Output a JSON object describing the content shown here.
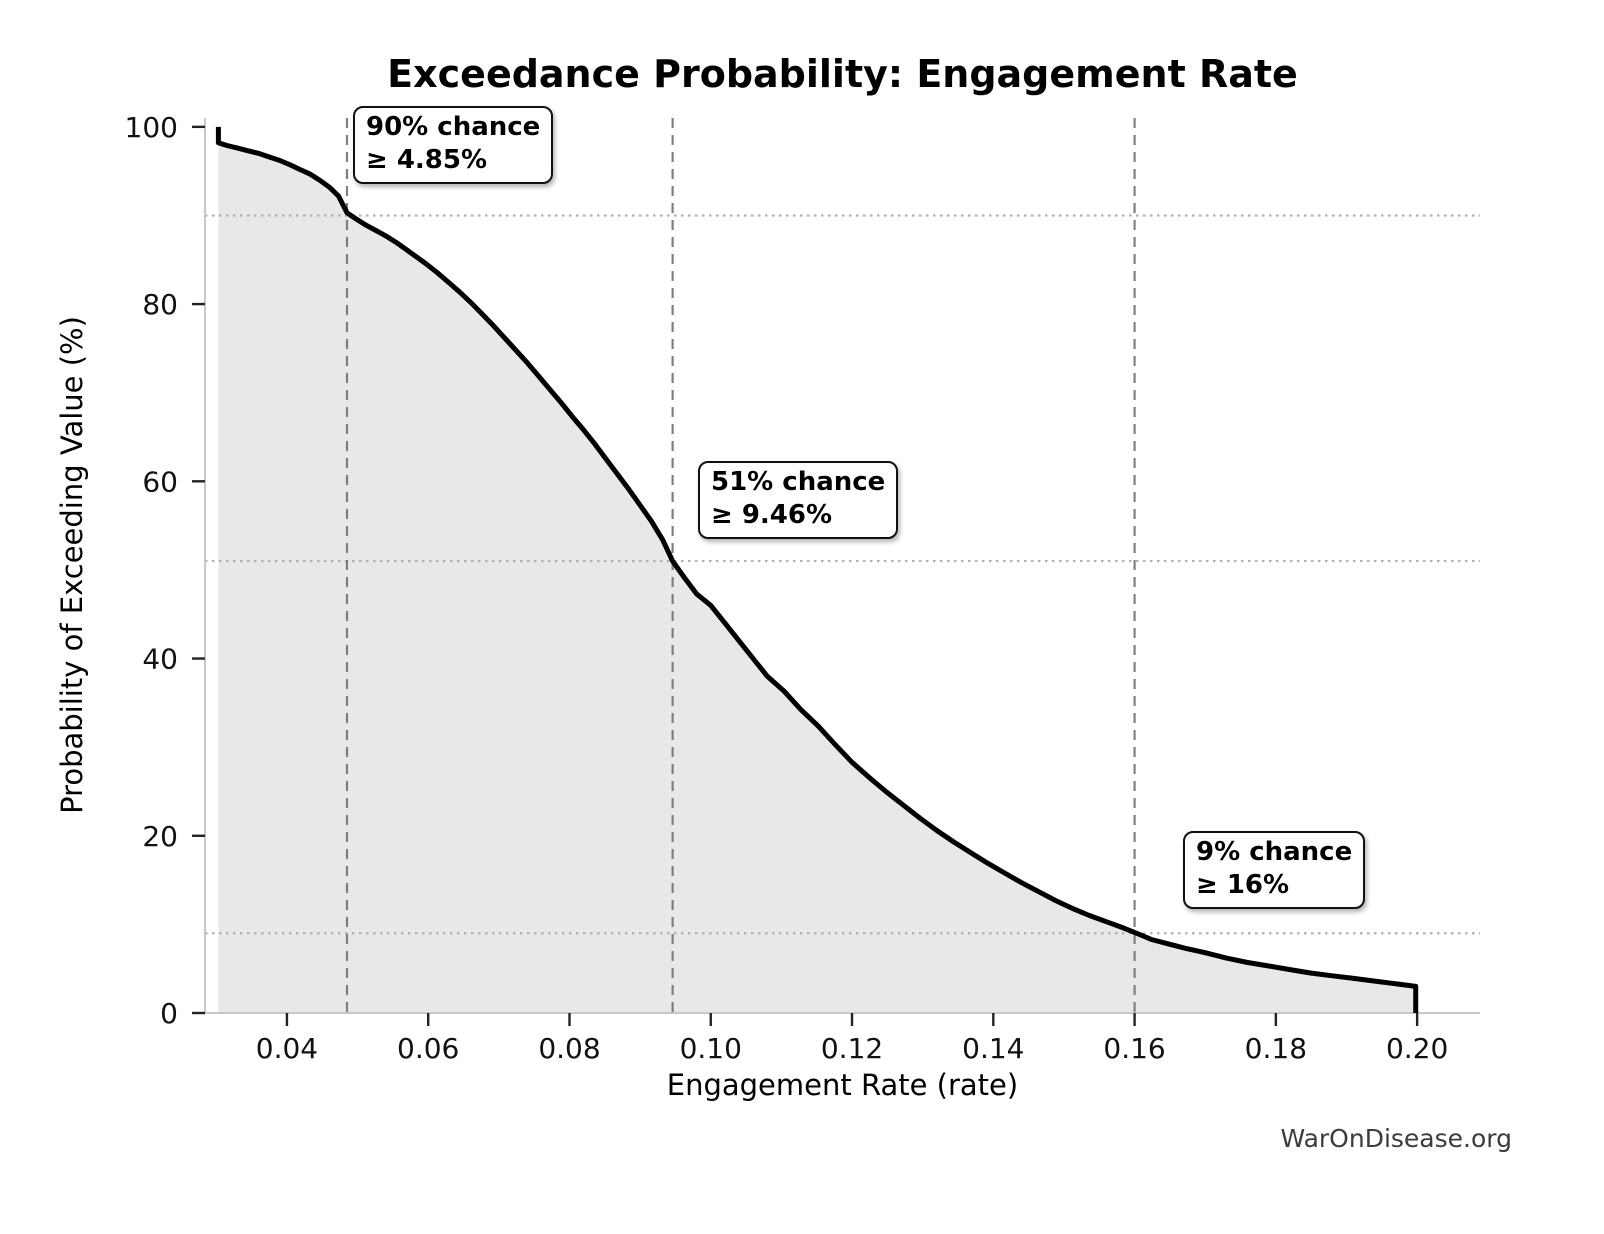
{
  "watermark": "WarOnDisease.org",
  "annotations": [
    {
      "line1": "90% chance",
      "line2": "≥ 4.85%",
      "x": 0.0485,
      "prob": 90
    },
    {
      "line1": "51% chance",
      "line2": "≥ 9.46%",
      "x": 0.0946,
      "prob": 51
    },
    {
      "line1": "9% chance",
      "line2": "≥ 16%",
      "x": 0.16,
      "prob": 9
    }
  ],
  "axes": {
    "x_ticks": [
      {
        "value": 0.04,
        "label": "0.04"
      },
      {
        "value": 0.06,
        "label": "0.06"
      },
      {
        "value": 0.08,
        "label": "0.08"
      },
      {
        "value": 0.1,
        "label": "0.10"
      },
      {
        "value": 0.12,
        "label": "0.12"
      },
      {
        "value": 0.14,
        "label": "0.14"
      },
      {
        "value": 0.16,
        "label": "0.16"
      },
      {
        "value": 0.18,
        "label": "0.18"
      },
      {
        "value": 0.2,
        "label": "0.20"
      }
    ],
    "y_ticks": [
      {
        "value": 0,
        "label": "0"
      },
      {
        "value": 20,
        "label": "20"
      },
      {
        "value": 40,
        "label": "40"
      },
      {
        "value": 60,
        "label": "60"
      },
      {
        "value": 80,
        "label": "80"
      },
      {
        "value": 100,
        "label": "100"
      }
    ]
  },
  "colors": {
    "curve": "#000000",
    "fill": "#e8e8e8",
    "spine": "#c8c8c8",
    "tick": "#222222",
    "dashed_line": "#7f7f7f",
    "dotted_line": "#b0b0b0"
  },
  "chart_data": {
    "type": "area",
    "title": "Exceedance Probability: Engagement Rate",
    "xlabel": "Engagement Rate (rate)",
    "ylabel": "Probability of Exceeding Value (%)",
    "xlim": [
      0.0284,
      0.2089
    ],
    "ylim": [
      0,
      101
    ],
    "grid": "reference lines only (dashed vertical at annotation x, dotted horizontal at annotation probability)",
    "legend": "none",
    "series_name": "Probability of exceeding engagement rate (empirical survival curve)",
    "x": [
      0.0303,
      0.0303,
      0.0315,
      0.033,
      0.0345,
      0.036,
      0.0375,
      0.039,
      0.0405,
      0.0418,
      0.0432,
      0.0446,
      0.046,
      0.0473,
      0.0485,
      0.0498,
      0.0512,
      0.0526,
      0.054,
      0.0554,
      0.0568,
      0.0582,
      0.0596,
      0.0612,
      0.0628,
      0.0644,
      0.066,
      0.0676,
      0.0692,
      0.0708,
      0.0724,
      0.074,
      0.0756,
      0.0772,
      0.0788,
      0.0804,
      0.082,
      0.0836,
      0.0852,
      0.0868,
      0.0884,
      0.09,
      0.0916,
      0.0932,
      0.0946,
      0.0962,
      0.098,
      0.1,
      0.102,
      0.104,
      0.106,
      0.108,
      0.1104,
      0.1128,
      0.1152,
      0.1176,
      0.12,
      0.1224,
      0.1248,
      0.1272,
      0.1296,
      0.132,
      0.1344,
      0.1368,
      0.1392,
      0.1416,
      0.144,
      0.1464,
      0.1488,
      0.1512,
      0.1536,
      0.156,
      0.1584,
      0.16,
      0.1624,
      0.1648,
      0.1672,
      0.17,
      0.173,
      0.176,
      0.179,
      0.182,
      0.185,
      0.188,
      0.191,
      0.194,
      0.197,
      0.1998,
      0.1998
    ],
    "y": [
      100.0,
      98.2,
      97.9,
      97.6,
      97.3,
      97.0,
      96.6,
      96.2,
      95.7,
      95.2,
      94.7,
      94.0,
      93.2,
      92.2,
      90.3,
      89.6,
      88.9,
      88.3,
      87.7,
      87.0,
      86.2,
      85.4,
      84.6,
      83.6,
      82.5,
      81.4,
      80.2,
      78.9,
      77.6,
      76.2,
      74.8,
      73.4,
      71.9,
      70.4,
      68.9,
      67.3,
      65.8,
      64.2,
      62.5,
      60.8,
      59.1,
      57.3,
      55.5,
      53.4,
      51.0,
      49.2,
      47.3,
      46.0,
      44.0,
      42.0,
      40.0,
      38.0,
      36.3,
      34.2,
      32.4,
      30.3,
      28.3,
      26.6,
      25.0,
      23.5,
      22.0,
      20.6,
      19.3,
      18.1,
      16.9,
      15.8,
      14.7,
      13.7,
      12.7,
      11.8,
      11.0,
      10.3,
      9.6,
      9.1,
      8.3,
      7.8,
      7.3,
      6.8,
      6.2,
      5.7,
      5.3,
      4.9,
      4.5,
      4.2,
      3.9,
      3.6,
      3.3,
      3.0,
      0.0
    ]
  }
}
